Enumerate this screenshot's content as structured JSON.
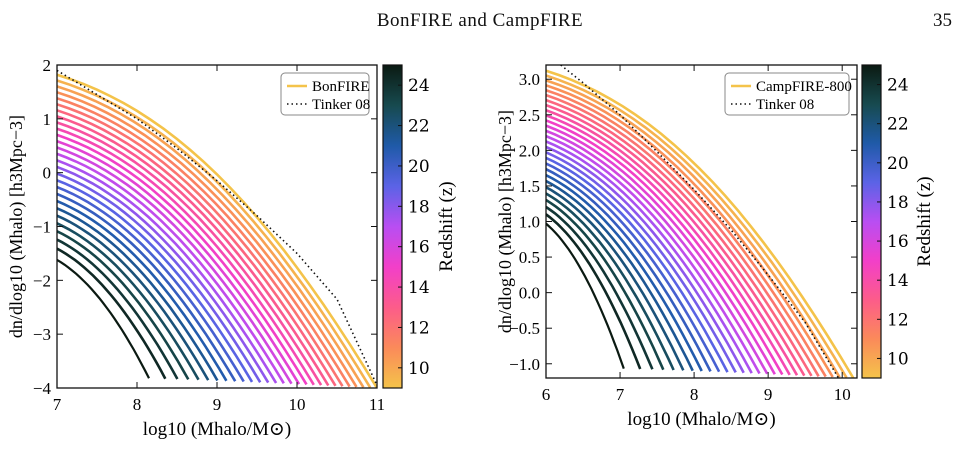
{
  "header": {
    "running_head": "BonFIRE and CampFIRE",
    "page_number": "35"
  },
  "colorbar": {
    "label": "Redshift (z)",
    "ticks": [
      10,
      12,
      14,
      16,
      18,
      20,
      22,
      24
    ],
    "range": [
      9,
      25
    ],
    "stops": [
      "#f4c34a",
      "#fb8a5a",
      "#fc5c8a",
      "#f23fc9",
      "#b84ef2",
      "#5b63e6",
      "#1f5aa8",
      "#174a4f",
      "#0b1a12"
    ]
  },
  "chart_data": [
    {
      "type": "line",
      "panel": "left",
      "xlabel": "log10 (Mhalo/M⊙)",
      "ylabel": "dn/dlog10 (Mhalo) [h3Mpc−3]",
      "xlim": [
        7,
        11
      ],
      "ylim": [
        -4,
        2
      ],
      "xticks": [
        7,
        8,
        9,
        10,
        11
      ],
      "yticks": [
        -4,
        -3,
        -2,
        -1,
        0,
        1,
        2
      ],
      "legend": [
        "BonFIRE",
        "Tinker 08"
      ],
      "legend_position": "top-right",
      "reference_line": {
        "name": "Tinker 08",
        "x": [
          7,
          7.5,
          8,
          8.5,
          9,
          9.5,
          10,
          10.5,
          11
        ],
        "y": [
          1.9,
          1.45,
          1.0,
          0.45,
          -0.15,
          -0.8,
          -1.5,
          -2.35,
          -3.95
        ]
      },
      "series_by_redshift": {
        "z_from": 25,
        "z_to": 9,
        "count": 28,
        "start_y_first": -1.62,
        "start_y_last": 1.82,
        "end_x_first": 8.15,
        "end_x_last": 11.0
      }
    },
    {
      "type": "line",
      "panel": "right",
      "xlabel": "log10 (Mhalo/M⊙)",
      "ylabel": "dn/dlog10 (Mhalo) [h3Mpc−3]",
      "xlim": [
        6,
        10.2
      ],
      "ylim": [
        -1.2,
        3.2
      ],
      "xticks": [
        6,
        7,
        8,
        9,
        10
      ],
      "yticks": [
        -1.0,
        -0.5,
        0.0,
        0.5,
        1.0,
        1.5,
        2.0,
        2.5,
        3.0
      ],
      "legend": [
        "CampFIRE-800",
        "Tinker 08"
      ],
      "legend_position": "top-right",
      "reference_line": {
        "name": "Tinker 08",
        "x": [
          6.2,
          6.5,
          7,
          7.5,
          8,
          8.5,
          9,
          9.5,
          9.95
        ],
        "y": [
          3.2,
          2.95,
          2.5,
          1.98,
          1.45,
          0.88,
          0.25,
          -0.42,
          -1.2
        ]
      },
      "series_by_redshift": {
        "z_from": 25,
        "z_to": 9,
        "count": 28,
        "start_y_first": 0.97,
        "start_y_last": 3.12,
        "end_x_first": 7.05,
        "end_x_last": 10.15
      }
    }
  ]
}
